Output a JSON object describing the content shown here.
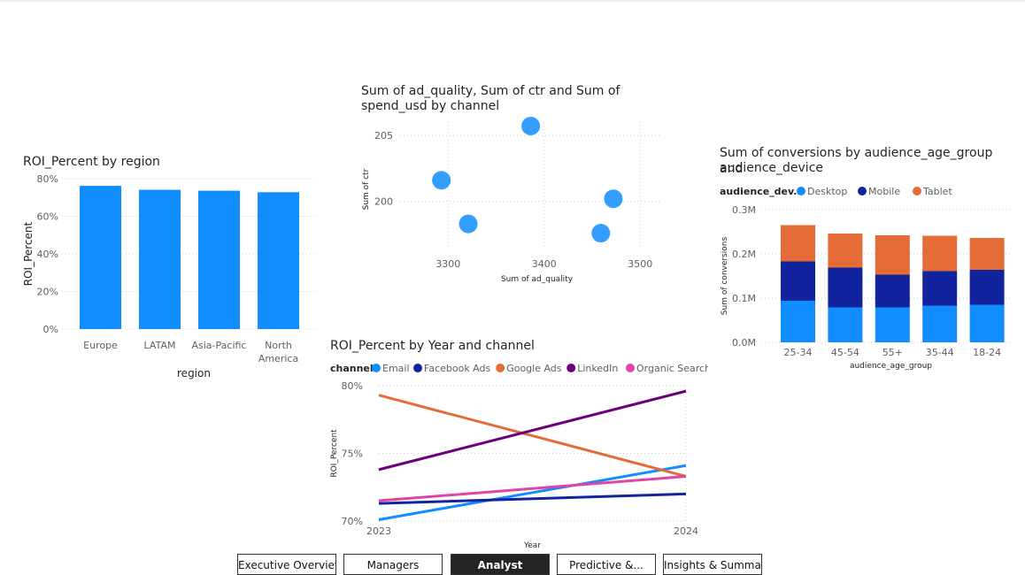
{
  "report": {
    "visuals": {
      "roi_region": {
        "title": "ROI_Percent by region",
        "ylabel": "ROI_Percent",
        "xlabel": "region",
        "yticks": [
          "0%",
          "20%",
          "40%",
          "60%",
          "80%"
        ],
        "categories": [
          "Europe",
          "LATAM",
          "Asia-Pacific",
          "North",
          "America"
        ],
        "color": "#118DFF"
      },
      "scatter": {
        "title_line1": "Sum of ad_quality, Sum of ctr and Sum of",
        "title_line2": "spend_usd by channel",
        "xlabel": "Sum of ad_quality",
        "ylabel": "Sum of ctr",
        "xticks": [
          "3300",
          "3400",
          "3500"
        ],
        "yticks": [
          "200",
          "205"
        ],
        "color": "#118DFF"
      },
      "conversions": {
        "title_line1": "Sum of conversions by audience_age_group and",
        "title_line2": "audience_device",
        "legend_title": "audience_dev...",
        "legend_items": [
          "Desktop",
          "Mobile",
          "Tablet"
        ],
        "legend_colors": [
          "#118DFF",
          "#12239E",
          "#E66C37"
        ],
        "ylabel": "Sum of conversions",
        "xlabel": "audience_age_group",
        "yticks": [
          "0.0M",
          "0.1M",
          "0.2M",
          "0.3M"
        ],
        "categories": [
          "25-34",
          "45-54",
          "55+",
          "35-44",
          "18-24"
        ]
      },
      "roi_year": {
        "title": "ROI_Percent by Year and channel",
        "legend_title": "channel",
        "legend_items": [
          "Email",
          "Facebook Ads",
          "Google Ads",
          "LinkedIn",
          "Organic Search"
        ],
        "legend_colors": [
          "#118DFF",
          "#12239E",
          "#E66C37",
          "#6B007B",
          "#E044A7"
        ],
        "ylabel": "ROI_Percent",
        "xlabel": "Year",
        "yticks": [
          "70%",
          "75%",
          "80%"
        ],
        "xticks": [
          "2023",
          "2024"
        ]
      }
    },
    "tabs": [
      {
        "label": "Executive Overview",
        "active": false
      },
      {
        "label": "Managers",
        "active": false
      },
      {
        "label": "Analyst",
        "active": true
      },
      {
        "label": "Predictive &...",
        "active": false
      },
      {
        "label": "Insights & Summary",
        "active": false
      }
    ]
  },
  "chart_data": [
    {
      "type": "bar",
      "title": "ROI_Percent by region",
      "xlabel": "region",
      "ylabel": "ROI_Percent",
      "categories": [
        "Europe",
        "LATAM",
        "Asia-Pacific",
        "North America"
      ],
      "values": [
        76.2,
        74.1,
        73.6,
        72.8
      ],
      "ylim": [
        0,
        80
      ],
      "grid": true
    },
    {
      "type": "scatter",
      "title": "Sum of ad_quality, Sum of ctr and Sum of spend_usd by channel",
      "xlabel": "Sum of ad_quality",
      "ylabel": "Sum of ctr",
      "xlim": [
        3250,
        3520
      ],
      "ylim": [
        196.5,
        206
      ],
      "points": [
        {
          "x": 3293,
          "y": 201.6
        },
        {
          "x": 3321,
          "y": 198.3
        },
        {
          "x": 3386,
          "y": 205.7
        },
        {
          "x": 3459,
          "y": 197.6
        },
        {
          "x": 3472,
          "y": 200.2
        }
      ],
      "grid": true
    },
    {
      "type": "bar",
      "stacked": true,
      "title": "Sum of conversions by audience_age_group and audience_device",
      "xlabel": "audience_age_group",
      "ylabel": "Sum of conversions",
      "categories": [
        "25-34",
        "45-54",
        "55+",
        "35-44",
        "18-24"
      ],
      "series": [
        {
          "name": "Desktop",
          "values": [
            94000,
            79000,
            79000,
            83000,
            85000
          ]
        },
        {
          "name": "Mobile",
          "values": [
            89000,
            90000,
            74000,
            78000,
            79000
          ]
        },
        {
          "name": "Tablet",
          "values": [
            82000,
            77000,
            89000,
            80000,
            72000
          ]
        }
      ],
      "ylim": [
        0,
        300000
      ],
      "legend": "top-left",
      "grid": true
    },
    {
      "type": "line",
      "title": "ROI_Percent by Year and channel",
      "xlabel": "Year",
      "ylabel": "ROI_Percent",
      "x": [
        "2023",
        "2024"
      ],
      "series": [
        {
          "name": "Email",
          "values": [
            70.1,
            74.1
          ]
        },
        {
          "name": "Facebook Ads",
          "values": [
            71.3,
            72.0
          ]
        },
        {
          "name": "Google Ads",
          "values": [
            79.3,
            73.3
          ]
        },
        {
          "name": "LinkedIn",
          "values": [
            73.8,
            79.6
          ]
        },
        {
          "name": "Organic Search",
          "values": [
            71.5,
            73.3
          ]
        }
      ],
      "ylim": [
        70,
        80
      ],
      "legend": "top-left",
      "grid": true
    }
  ]
}
